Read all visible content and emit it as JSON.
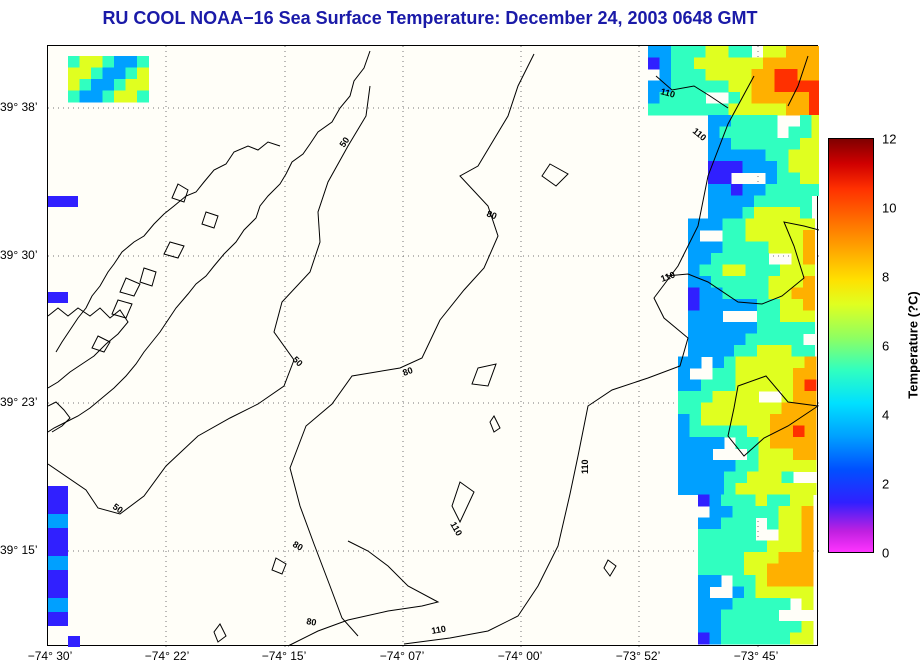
{
  "title": "RU COOL  NOAA−16  Sea Surface Temperature:  December 24, 2003 0648 GMT",
  "lat_labels": [
    {
      "text": "39° 38’"
    },
    {
      "text": "39° 30’"
    },
    {
      "text": "39° 23’"
    },
    {
      "text": "39° 15’"
    }
  ],
  "lon_labels": [
    {
      "text": "−74° 30’"
    },
    {
      "text": "−74° 22’"
    },
    {
      "text": "−74° 15’"
    },
    {
      "text": "−74° 07’"
    },
    {
      "text": "−74° 00’"
    },
    {
      "text": "−73° 52’"
    },
    {
      "text": "−73° 45’"
    }
  ],
  "contour_labels": [
    "50",
    "50",
    "50",
    "80",
    "80",
    "80",
    "80",
    "110",
    "110",
    "110",
    "110",
    "110"
  ],
  "colorbar": {
    "label": "Temperature (?C)",
    "ticks": [
      "12",
      "10",
      "8",
      "6",
      "4",
      "2",
      "0"
    ],
    "min": 0,
    "max": 12,
    "colors": [
      "#ff33ff",
      "#3020ff",
      "#00a0ff",
      "#30ffc0",
      "#e0ff20",
      "#ffb000",
      "#ff3000",
      "#800000"
    ]
  }
}
